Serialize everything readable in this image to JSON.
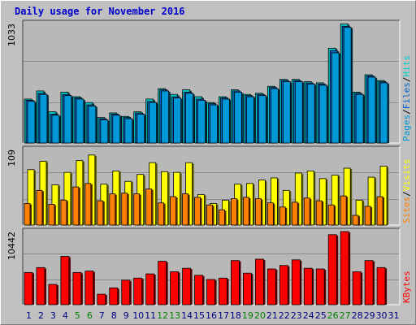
{
  "title": "Daily usage for November 2016",
  "colors": {
    "background": "#c0c0c0",
    "plot": "#b8b8b8",
    "grid": "#8c8c8c",
    "hits": "#00cccc",
    "files": "#0066cc",
    "pages": "#0098d6",
    "visits": "#ffff00",
    "sites": "#ff8000",
    "kbytes": "#ff0000",
    "weekend_label": "#008000",
    "weekday_label": "#000080"
  },
  "chart_data": [
    {
      "type": "bar",
      "ymax_label": "1033",
      "legend": [
        "Pages",
        "Files",
        "Hits"
      ],
      "legend_separator": "/",
      "categories": [
        "1",
        "2",
        "3",
        "4",
        "5",
        "6",
        "7",
        "8",
        "9",
        "10",
        "11",
        "12",
        "13",
        "14",
        "15",
        "16",
        "17",
        "18",
        "19",
        "20",
        "21",
        "22",
        "23",
        "24",
        "25",
        "26",
        "27",
        "28",
        "29",
        "30",
        "31"
      ],
      "weekend_days": [
        "5",
        "6",
        "12",
        "13",
        "19",
        "20",
        "26",
        "27"
      ],
      "ylim": [
        0,
        1033
      ],
      "series": [
        {
          "name": "Hits",
          "values": [
            380,
            450,
            270,
            440,
            400,
            350,
            220,
            260,
            230,
            270,
            380,
            470,
            420,
            460,
            400,
            350,
            400,
            460,
            420,
            430,
            490,
            550,
            550,
            530,
            520,
            820,
            1030,
            440,
            590,
            540,
            0
          ]
        },
        {
          "name": "Files",
          "values": [
            370,
            430,
            250,
            420,
            390,
            330,
            210,
            250,
            220,
            260,
            360,
            460,
            400,
            440,
            380,
            340,
            390,
            450,
            410,
            420,
            480,
            540,
            540,
            520,
            510,
            800,
            1010,
            430,
            580,
            530,
            0
          ]
        },
        {
          "name": "Pages",
          "values": [
            360,
            420,
            240,
            410,
            380,
            320,
            200,
            240,
            210,
            250,
            350,
            450,
            390,
            430,
            370,
            330,
            380,
            440,
            400,
            410,
            470,
            530,
            530,
            510,
            500,
            780,
            1000,
            420,
            570,
            520,
            0
          ]
        }
      ]
    },
    {
      "type": "bar",
      "ymax_label": "109",
      "legend": [
        "Sites",
        "Visits"
      ],
      "legend_separator": "/",
      "categories": [
        "1",
        "2",
        "3",
        "4",
        "5",
        "6",
        "7",
        "8",
        "9",
        "10",
        "11",
        "12",
        "13",
        "14",
        "15",
        "16",
        "17",
        "18",
        "19",
        "20",
        "21",
        "22",
        "23",
        "24",
        "25",
        "26",
        "27",
        "28",
        "29",
        "30",
        "31"
      ],
      "ylim": [
        0,
        109
      ],
      "series": [
        {
          "name": "Visits",
          "values": [
            80,
            92,
            58,
            76,
            93,
            101,
            59,
            78,
            63,
            73,
            90,
            77,
            76,
            90,
            44,
            31,
            36,
            59,
            60,
            65,
            68,
            50,
            75,
            78,
            67,
            72,
            82,
            36,
            69,
            85,
            0
          ]
        },
        {
          "name": "Sites",
          "values": [
            31,
            50,
            30,
            36,
            55,
            60,
            35,
            45,
            46,
            45,
            52,
            32,
            41,
            45,
            40,
            29,
            22,
            38,
            40,
            38,
            32,
            26,
            33,
            39,
            35,
            29,
            42,
            14,
            27,
            41,
            0
          ]
        }
      ]
    },
    {
      "type": "bar",
      "ymax_label": "10442",
      "legend": [
        "KBytes"
      ],
      "categories": [
        "1",
        "2",
        "3",
        "4",
        "5",
        "6",
        "7",
        "8",
        "9",
        "10",
        "11",
        "12",
        "13",
        "14",
        "15",
        "16",
        "17",
        "18",
        "19",
        "20",
        "21",
        "22",
        "23",
        "24",
        "25",
        "26",
        "27",
        "28",
        "29",
        "30",
        "31"
      ],
      "ylim": [
        0,
        10442
      ],
      "series": [
        {
          "name": "KBytes",
          "values": [
            4600,
            5300,
            2900,
            6900,
            4600,
            4800,
            1500,
            2400,
            3500,
            3800,
            4400,
            6200,
            4700,
            5200,
            4200,
            3600,
            3800,
            6300,
            4500,
            6500,
            5100,
            5600,
            6400,
            5200,
            5100,
            10000,
            10442,
            4700,
            6300,
            5300,
            0
          ]
        }
      ]
    }
  ]
}
